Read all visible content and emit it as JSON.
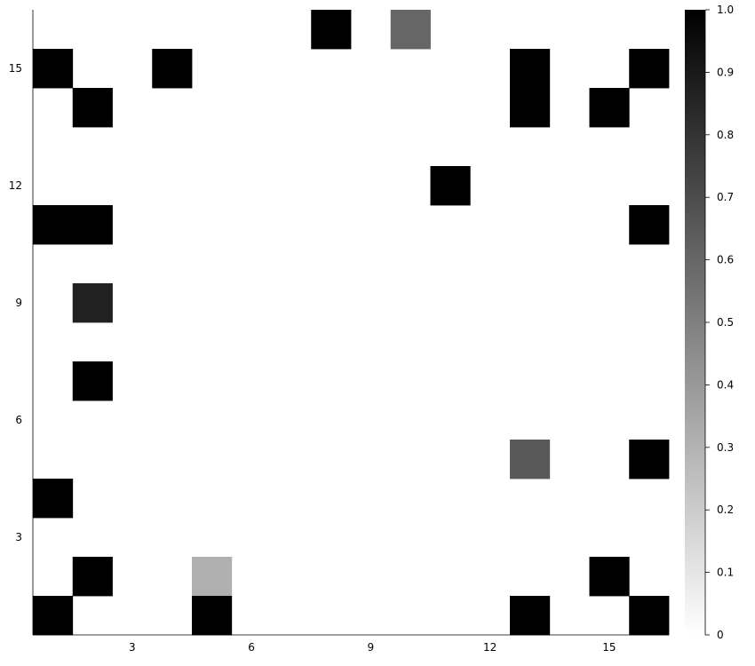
{
  "chart_data": {
    "type": "heatmap",
    "title": "",
    "xlabel": "",
    "ylabel": "",
    "x_range": [
      1,
      16
    ],
    "y_range": [
      1,
      16
    ],
    "xlim": [
      0.5,
      16.5
    ],
    "ylim": [
      0.5,
      16.5
    ],
    "x_ticks": [
      3,
      6,
      9,
      12,
      15
    ],
    "y_ticks": [
      3,
      6,
      9,
      12,
      15
    ],
    "colorbar": {
      "range": [
        0,
        1
      ],
      "ticks": [
        "0",
        "0.1",
        "0.2",
        "0.3",
        "0.4",
        "0.5",
        "0.6",
        "0.7",
        "0.8",
        "0.9",
        "1.0"
      ],
      "colormap": "white-to-black"
    },
    "default_value": 0,
    "cells": [
      {
        "x": 8,
        "y": 16,
        "value": 1.0
      },
      {
        "x": 10,
        "y": 16,
        "value": 0.6
      },
      {
        "x": 1,
        "y": 15,
        "value": 1.0
      },
      {
        "x": 4,
        "y": 15,
        "value": 1.0
      },
      {
        "x": 13,
        "y": 15,
        "value": 1.0
      },
      {
        "x": 16,
        "y": 15,
        "value": 1.0
      },
      {
        "x": 2,
        "y": 14,
        "value": 1.0
      },
      {
        "x": 13,
        "y": 14,
        "value": 1.0
      },
      {
        "x": 15,
        "y": 14,
        "value": 1.0
      },
      {
        "x": 11,
        "y": 12,
        "value": 1.0
      },
      {
        "x": 1,
        "y": 11,
        "value": 1.0
      },
      {
        "x": 2,
        "y": 11,
        "value": 1.0
      },
      {
        "x": 16,
        "y": 11,
        "value": 1.0
      },
      {
        "x": 2,
        "y": 9,
        "value": 0.87
      },
      {
        "x": 2,
        "y": 7,
        "value": 1.0
      },
      {
        "x": 13,
        "y": 5,
        "value": 0.65
      },
      {
        "x": 16,
        "y": 5,
        "value": 1.0
      },
      {
        "x": 1,
        "y": 4,
        "value": 1.0
      },
      {
        "x": 2,
        "y": 2,
        "value": 1.0
      },
      {
        "x": 5,
        "y": 2,
        "value": 0.31
      },
      {
        "x": 15,
        "y": 2,
        "value": 1.0
      },
      {
        "x": 1,
        "y": 1,
        "value": 1.0
      },
      {
        "x": 5,
        "y": 1,
        "value": 1.0
      },
      {
        "x": 13,
        "y": 1,
        "value": 1.0
      },
      {
        "x": 16,
        "y": 1,
        "value": 1.0
      }
    ]
  }
}
